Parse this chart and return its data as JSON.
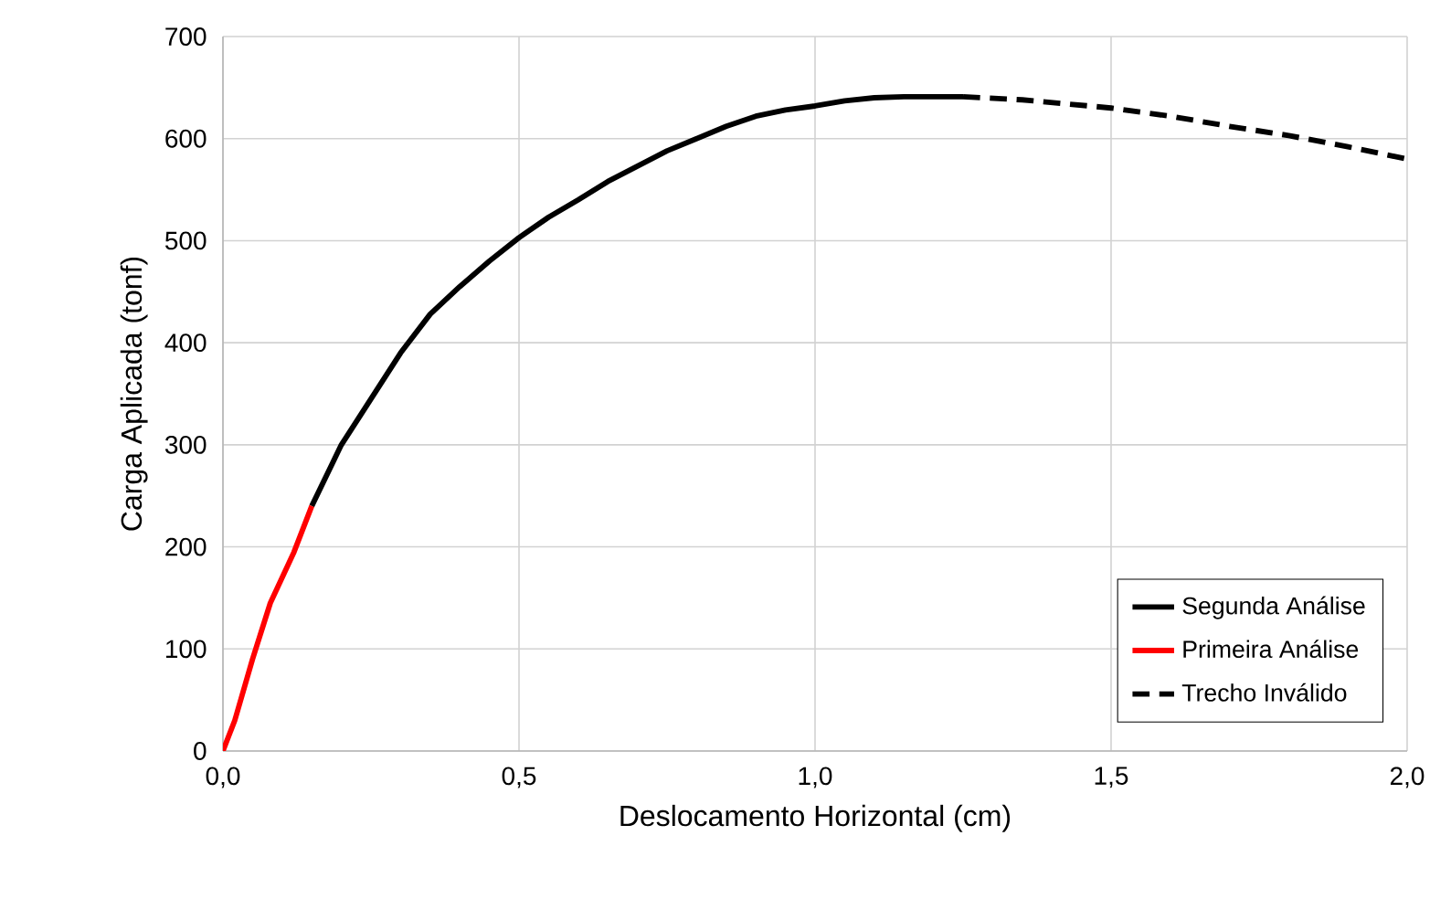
{
  "chart_data": {
    "type": "line",
    "xlabel": "Deslocamento Horizontal (cm)",
    "ylabel": "Carga Aplicada (tonf)",
    "xlim": [
      0,
      2
    ],
    "ylim": [
      0,
      700
    ],
    "xticks": [
      {
        "value": 0,
        "label": "0,0"
      },
      {
        "value": 0.5,
        "label": "0,5"
      },
      {
        "value": 1,
        "label": "1,0"
      },
      {
        "value": 1.5,
        "label": "1,5"
      },
      {
        "value": 2,
        "label": "2,0"
      }
    ],
    "yticks": [
      0,
      100,
      200,
      300,
      400,
      500,
      600,
      700
    ],
    "grid": true,
    "legend": "bottom right",
    "marker": "none",
    "series": [
      {
        "name": "Segunda Análise",
        "color": "#000000",
        "line_style": "solid",
        "x": [
          0.15,
          0.2,
          0.25,
          0.3,
          0.35,
          0.4,
          0.45,
          0.5,
          0.55,
          0.6,
          0.65,
          0.7,
          0.75,
          0.8,
          0.85,
          0.9,
          0.95,
          1.0,
          1.05,
          1.1,
          1.15,
          1.2,
          1.25
        ],
        "values": [
          240,
          300,
          345,
          390,
          428,
          455,
          480,
          503,
          523,
          540,
          558,
          573,
          588,
          600,
          612,
          622,
          628,
          632,
          637,
          640,
          641,
          641,
          641
        ]
      },
      {
        "name": "Primeira Análise",
        "color": "#ff0000",
        "line_style": "solid",
        "x": [
          0,
          0.02,
          0.05,
          0.08,
          0.12,
          0.15
        ],
        "values": [
          0,
          30,
          90,
          145,
          195,
          240
        ]
      },
      {
        "name": "Trecho Inválido",
        "color": "#000000",
        "line_style": "dashed",
        "x": [
          1.25,
          1.35,
          1.5,
          1.6,
          1.7,
          1.8,
          1.9,
          2.0
        ],
        "values": [
          641,
          638,
          630,
          622,
          612,
          603,
          592,
          580
        ]
      }
    ]
  }
}
